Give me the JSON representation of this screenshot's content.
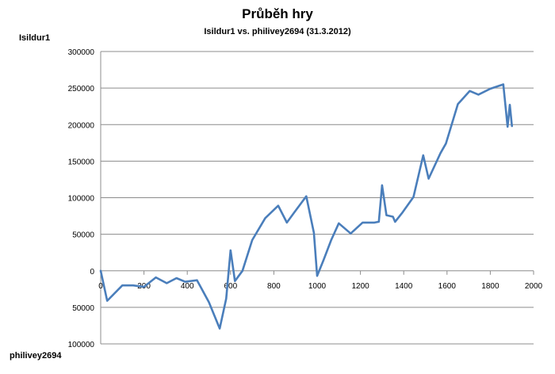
{
  "chart_data": {
    "type": "line",
    "title": "Průběh hry",
    "subtitle": "Isildur1 vs. philivey2694 (31.3.2012)",
    "player_top": "Isildur1",
    "player_bottom": "philivey2694",
    "xlim": [
      0,
      2000
    ],
    "ylim": [
      -100000,
      300000
    ],
    "x_ticks": [
      {
        "value": 0,
        "label": "0"
      },
      {
        "value": 200,
        "label": "200"
      },
      {
        "value": 400,
        "label": "400"
      },
      {
        "value": 600,
        "label": "600"
      },
      {
        "value": 800,
        "label": "800"
      },
      {
        "value": 1000,
        "label": "1000"
      },
      {
        "value": 1200,
        "label": "1200"
      },
      {
        "value": 1400,
        "label": "1400"
      },
      {
        "value": 1600,
        "label": "1600"
      },
      {
        "value": 1800,
        "label": "1800"
      },
      {
        "value": 2000,
        "label": "2000"
      }
    ],
    "y_ticks": [
      {
        "value": 300000,
        "label": "300000"
      },
      {
        "value": 250000,
        "label": "250000"
      },
      {
        "value": 200000,
        "label": "200000"
      },
      {
        "value": 150000,
        "label": "150000"
      },
      {
        "value": 100000,
        "label": "100000"
      },
      {
        "value": 50000,
        "label": "50000"
      },
      {
        "value": 0,
        "label": "0"
      },
      {
        "value": -50000,
        "label": "50000"
      },
      {
        "value": -100000,
        "label": "100000"
      }
    ],
    "grid": true,
    "line_color": "#4a7ebb",
    "series": [
      {
        "name": "",
        "points": [
          [
            0,
            0
          ],
          [
            30,
            -41000
          ],
          [
            100,
            -20000
          ],
          [
            150,
            -20000
          ],
          [
            200,
            -22000
          ],
          [
            255,
            -9000
          ],
          [
            305,
            -17000
          ],
          [
            350,
            -10000
          ],
          [
            390,
            -15000
          ],
          [
            445,
            -13000
          ],
          [
            500,
            -43000
          ],
          [
            550,
            -79000
          ],
          [
            580,
            -38000
          ],
          [
            600,
            28000
          ],
          [
            620,
            -14000
          ],
          [
            655,
            0
          ],
          [
            700,
            42000
          ],
          [
            760,
            72000
          ],
          [
            820,
            89000
          ],
          [
            860,
            66000
          ],
          [
            895,
            80000
          ],
          [
            950,
            102000
          ],
          [
            985,
            52000
          ],
          [
            1000,
            -7000
          ],
          [
            1030,
            15000
          ],
          [
            1065,
            42000
          ],
          [
            1100,
            65000
          ],
          [
            1155,
            51000
          ],
          [
            1210,
            66000
          ],
          [
            1265,
            66000
          ],
          [
            1285,
            67000
          ],
          [
            1300,
            117000
          ],
          [
            1320,
            76000
          ],
          [
            1350,
            74000
          ],
          [
            1360,
            67000
          ],
          [
            1395,
            80000
          ],
          [
            1445,
            101000
          ],
          [
            1490,
            158000
          ],
          [
            1515,
            126000
          ],
          [
            1570,
            161000
          ],
          [
            1595,
            174000
          ],
          [
            1650,
            228000
          ],
          [
            1705,
            246000
          ],
          [
            1745,
            241000
          ],
          [
            1800,
            249000
          ],
          [
            1860,
            255000
          ],
          [
            1880,
            197000
          ],
          [
            1890,
            227000
          ],
          [
            1900,
            198000
          ]
        ]
      }
    ]
  }
}
